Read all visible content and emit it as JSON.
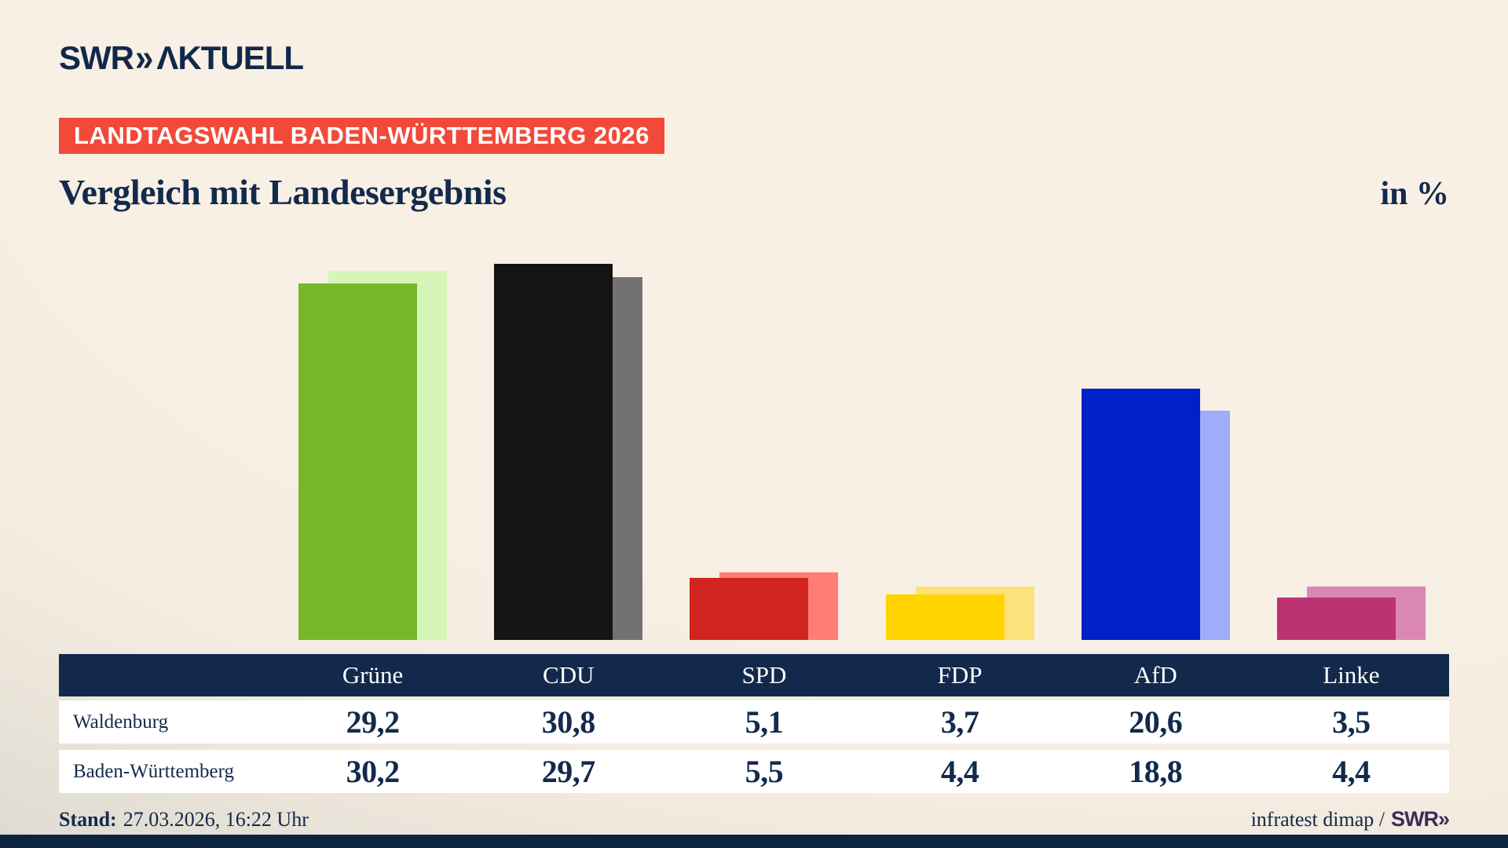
{
  "brand": {
    "swr": "SWR",
    "chevron": "»",
    "suffix": "ΛKTUELL"
  },
  "badge": {
    "text": "LANDTAGSWAHL BADEN-WÜRTTEMBERG 2026",
    "bg": "#f24a3a"
  },
  "title": "Vergleich mit Landesergebnis",
  "unit_label": "in %",
  "chart_data": {
    "type": "bar",
    "title": "Vergleich mit Landesergebnis",
    "unit": "%",
    "categories": [
      "Grüne",
      "CDU",
      "SPD",
      "FDP",
      "AfD",
      "Linke"
    ],
    "series": [
      {
        "name": "Waldenburg",
        "values": [
          29.2,
          30.8,
          5.1,
          3.7,
          20.6,
          3.5
        ]
      },
      {
        "name": "Baden-Württemberg",
        "values": [
          30.2,
          29.7,
          5.5,
          4.4,
          18.8,
          4.4
        ]
      }
    ],
    "bar_colors": [
      {
        "front": "#76b82a",
        "back": "#d6f6b8"
      },
      {
        "front": "#141413",
        "back": "#747271"
      },
      {
        "front": "#d22420",
        "back": "#fe7d74"
      },
      {
        "front": "#ffd400",
        "back": "#fbe27a"
      },
      {
        "front": "#0021c8",
        "back": "#9fadf8"
      },
      {
        "front": "#bb3272",
        "back": "#db87b6"
      }
    ],
    "ylim": [
      0,
      31.2
    ],
    "grid": false,
    "legend_position": "table-below"
  },
  "table": {
    "columns": [
      "Grüne",
      "CDU",
      "SPD",
      "FDP",
      "AfD",
      "Linke"
    ],
    "rows": [
      {
        "label": "Waldenburg",
        "values": [
          "29,2",
          "30,8",
          "5,1",
          "3,7",
          "20,6",
          "3,5"
        ]
      },
      {
        "label": "Baden-Württemberg",
        "values": [
          "30,2",
          "29,7",
          "5,5",
          "4,4",
          "18,8",
          "4,4"
        ]
      }
    ]
  },
  "footer": {
    "stand_label": "Stand:",
    "stand_value": "27.03.2026, 16:22 Uhr",
    "source": "infratest dimap /",
    "source_brand": "SWR»"
  }
}
